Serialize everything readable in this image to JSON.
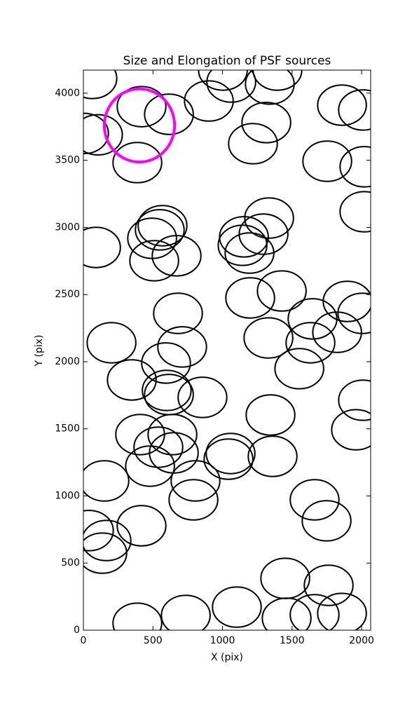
{
  "chart_data": {
    "type": "ellipse",
    "title": "Size and Elongation of PSF sources",
    "x_label": "X (pix)",
    "y_label": "Y (pix)",
    "xlim": [
      0,
      2065
    ],
    "ylim": [
      0,
      4172
    ],
    "xticks": [
      0,
      500,
      1000,
      1500,
      2000
    ],
    "yticks": [
      0,
      500,
      1000,
      1500,
      2000,
      2500,
      3000,
      3500,
      4000
    ],
    "series": [
      {
        "color": "#000000",
        "line_width": 2,
        "width": 350,
        "height": 300,
        "x": [
          65,
          418,
          615,
          5,
          105,
          388,
          902,
          1003,
          1063,
          1395,
          1340,
          1315,
          1219,
          1859,
          2010,
          1753,
          2020,
          2020,
          91,
          569,
          549,
          494,
          509,
          670,
          1335,
          1295,
          1154,
          1144,
          1194,
          1199,
          1426,
          1899,
          2005,
          1647,
          1824,
          1632,
          1330,
          1552,
          680,
          710,
          594,
          202,
          348,
          599,
          615,
          856,
          1345,
          2010,
          1960,
          408,
          640,
          539,
          650,
          479,
          1058,
          1043,
          1360,
          806,
          791,
          151,
          1662,
          1748,
          418,
          40,
          166,
          136,
          1451,
          1763,
          1103,
          736,
          388,
          1461,
          1662,
          1859
        ],
        "values": [
          4110,
          3900,
          3843,
          3700,
          3690,
          3483,
          3942,
          4172,
          4083,
          4172,
          4068,
          3781,
          3624,
          3911,
          3875,
          3493,
          3452,
          3117,
          2851,
          3013,
          2982,
          2919,
          2752,
          2789,
          3070,
          2950,
          2930,
          2867,
          2809,
          2475,
          2527,
          2449,
          2360,
          2319,
          2219,
          2141,
          2177,
          1948,
          2360,
          2110,
          1990,
          2141,
          1864,
          1786,
          1755,
          1734,
          1603,
          1713,
          1493,
          1457,
          1457,
          1363,
          1321,
          1222,
          1316,
          1274,
          1295,
          1112,
          971,
          1112,
          971,
          815,
          778,
          742,
          668,
          574,
          386,
          334,
          172,
          110,
          52,
          89,
          115,
          125
        ]
      },
      {
        "color": "#ff00ff",
        "line_width": 4,
        "width": 505,
        "height": 545,
        "x": [
          403
        ],
        "values": [
          3760
        ]
      }
    ]
  }
}
